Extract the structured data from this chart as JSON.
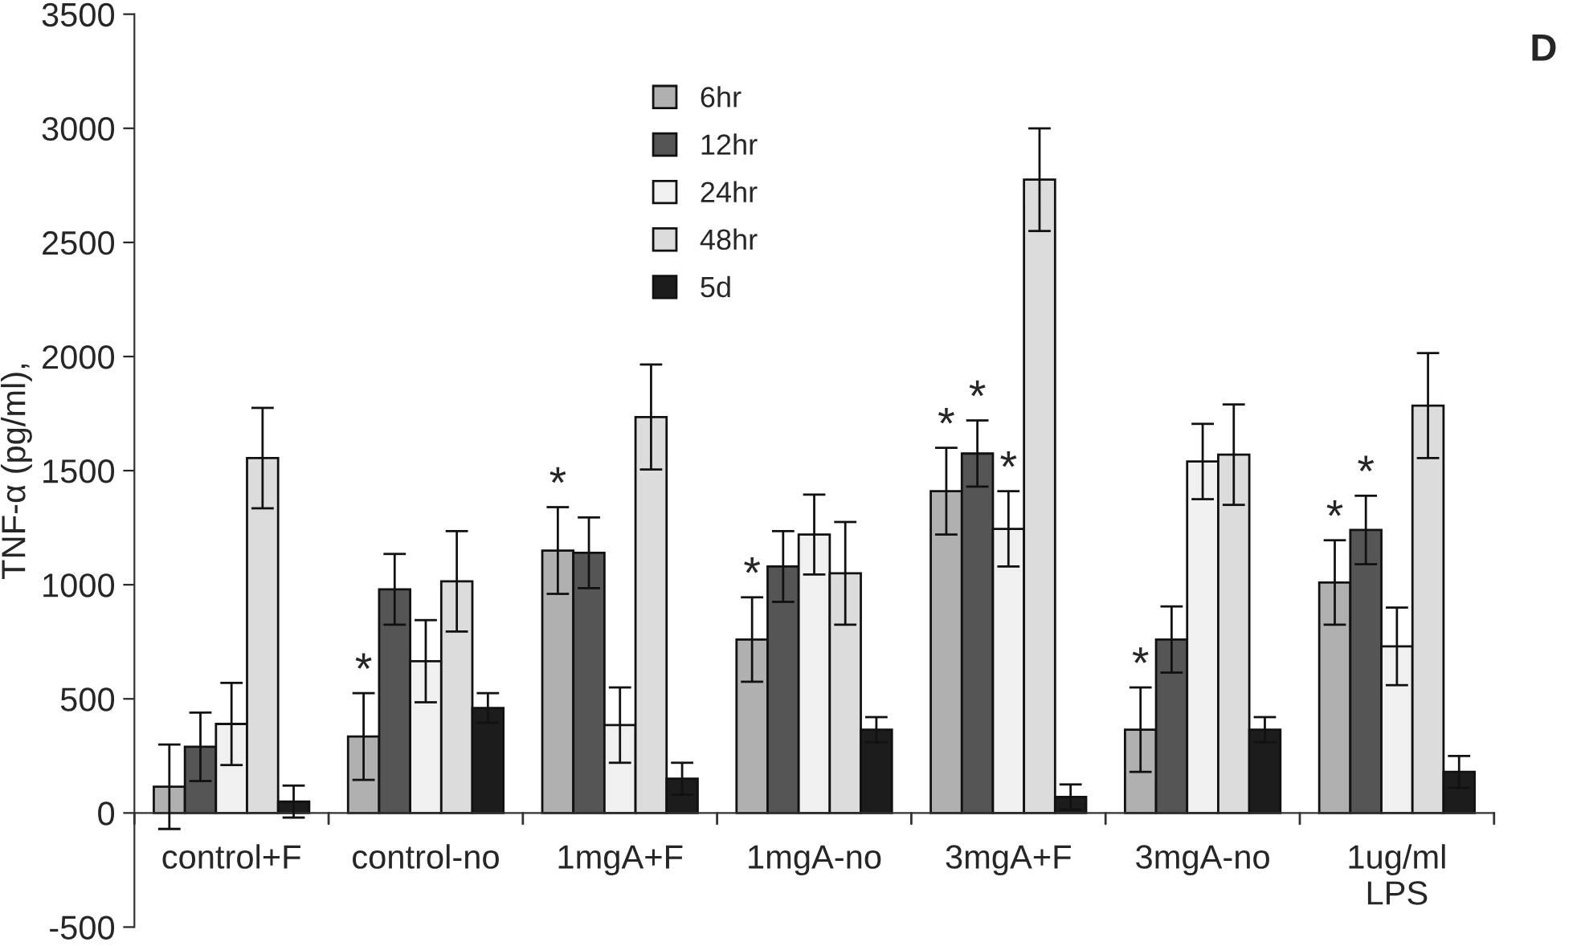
{
  "chart_data": {
    "type": "bar",
    "ylabel": "TNF-α (pg/ml),",
    "categories": [
      "control+F",
      "control-no",
      "1mgA+F",
      "1mgA-no",
      "3mgA+F",
      "3mgA-no",
      "1ug/ml\nLPS"
    ],
    "series": [
      {
        "name": "6hr",
        "color": "#b0b0b0",
        "values": [
          115,
          335,
          1150,
          760,
          1410,
          365,
          1010
        ],
        "errors": [
          185,
          190,
          190,
          185,
          190,
          185,
          185
        ],
        "value_labels": [
          null,
          "*",
          "*",
          "*",
          "*",
          "*",
          "*"
        ]
      },
      {
        "name": "12hr",
        "color": "#555555",
        "values": [
          290,
          980,
          1140,
          1080,
          1575,
          760,
          1240
        ],
        "errors": [
          150,
          155,
          155,
          155,
          145,
          145,
          150
        ],
        "value_labels": [
          null,
          null,
          null,
          null,
          "*",
          null,
          "*"
        ]
      },
      {
        "name": "24hr",
        "color": "#f0f0f0",
        "values": [
          390,
          665,
          385,
          1220,
          1245,
          1540,
          730
        ],
        "errors": [
          180,
          180,
          165,
          175,
          165,
          165,
          170
        ],
        "value_labels": [
          null,
          null,
          null,
          null,
          "*",
          null,
          null
        ]
      },
      {
        "name": "48hr",
        "color": "#dcdcdc",
        "values": [
          1555,
          1015,
          1735,
          1050,
          2775,
          1570,
          1785
        ],
        "errors": [
          220,
          220,
          230,
          225,
          225,
          220,
          230
        ]
      },
      {
        "name": "5d",
        "color": "#1c1c1c",
        "values": [
          50,
          460,
          150,
          365,
          70,
          365,
          180
        ],
        "errors": [
          70,
          65,
          70,
          55,
          55,
          55,
          70
        ]
      }
    ],
    "ylim": [
      -500,
      3500
    ],
    "yticks": [
      -500,
      0,
      500,
      1000,
      1500,
      2000,
      2500,
      3000,
      3500
    ],
    "legend": "top",
    "grid": false,
    "annotations": [
      "D"
    ]
  }
}
